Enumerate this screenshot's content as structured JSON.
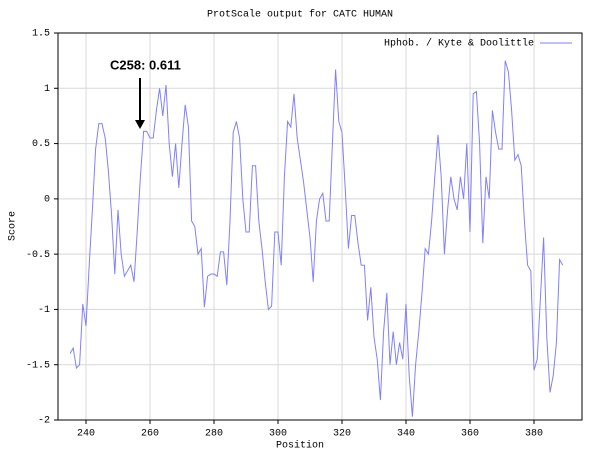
{
  "chart_data": {
    "type": "line",
    "title": "ProtScale output for CATC HUMAN",
    "x_label": "Position",
    "y_label": "Score",
    "annotation": "C258: 0.611",
    "x": [
      235,
      236,
      237,
      238,
      239,
      240,
      241,
      242,
      243,
      244,
      245,
      246,
      247,
      248,
      249,
      250,
      251,
      252,
      253,
      254,
      255,
      256,
      257,
      258,
      259,
      260,
      261,
      262,
      263,
      264,
      265,
      266,
      267,
      268,
      269,
      270,
      271,
      272,
      273,
      274,
      275,
      276,
      277,
      278,
      279,
      280,
      281,
      282,
      283,
      284,
      285,
      286,
      287,
      288,
      289,
      290,
      291,
      292,
      293,
      294,
      295,
      296,
      297,
      298,
      299,
      300,
      301,
      302,
      303,
      304,
      305,
      306,
      307,
      308,
      309,
      310,
      311,
      312,
      313,
      314,
      315,
      316,
      317,
      318,
      319,
      320,
      321,
      322,
      323,
      324,
      325,
      326,
      327,
      328,
      329,
      330,
      331,
      332,
      333,
      334,
      335,
      336,
      337,
      338,
      339,
      340,
      341,
      342,
      343,
      344,
      345,
      346,
      347,
      348,
      349,
      350,
      351,
      352,
      353,
      354,
      355,
      356,
      357,
      358,
      359,
      360,
      361,
      362,
      363,
      364,
      365,
      366,
      367,
      368,
      369,
      370,
      371,
      372,
      373,
      374,
      375,
      376,
      377,
      378,
      379,
      380,
      381,
      382,
      383,
      384,
      385,
      386,
      387,
      388,
      389
    ],
    "series": [
      {
        "name": "Hphob. / Kyte & Doolittle",
        "color": "#8080ff",
        "values": [
          -1.4,
          -1.35,
          -1.53,
          -1.5,
          -0.95,
          -1.15,
          -0.6,
          -0.1,
          0.45,
          0.68,
          0.68,
          0.55,
          0.25,
          -0.15,
          -0.68,
          -0.1,
          -0.5,
          -0.7,
          -0.65,
          -0.6,
          -0.75,
          -0.3,
          0.2,
          0.611,
          0.61,
          0.55,
          0.55,
          0.8,
          1.0,
          0.75,
          1.03,
          0.5,
          0.2,
          0.5,
          0.1,
          0.5,
          0.85,
          0.65,
          -0.2,
          -0.25,
          -0.5,
          -0.45,
          -0.98,
          -0.7,
          -0.68,
          -0.68,
          -0.7,
          -0.48,
          -0.48,
          -0.78,
          -0.2,
          0.6,
          0.7,
          0.55,
          0.0,
          -0.3,
          -0.3,
          0.3,
          0.3,
          -0.2,
          -0.45,
          -0.75,
          -1.0,
          -0.97,
          -0.3,
          -0.3,
          -0.6,
          0.2,
          0.7,
          0.65,
          0.95,
          0.55,
          0.35,
          0.15,
          -0.1,
          -0.35,
          -0.75,
          -0.2,
          0.0,
          0.05,
          -0.2,
          -0.2,
          0.5,
          1.17,
          0.7,
          0.6,
          0.1,
          -0.45,
          -0.15,
          -0.15,
          -0.4,
          -0.6,
          -0.6,
          -1.1,
          -0.8,
          -1.25,
          -1.45,
          -1.82,
          -1.2,
          -0.85,
          -1.5,
          -1.2,
          -1.5,
          -1.3,
          -1.45,
          -0.95,
          -1.6,
          -1.97,
          -1.5,
          -1.2,
          -0.85,
          -0.45,
          -0.5,
          -0.2,
          0.2,
          0.58,
          0.2,
          -0.5,
          -0.1,
          0.2,
          0.0,
          -0.1,
          0.2,
          0.0,
          0.5,
          -0.3,
          0.95,
          0.97,
          0.5,
          -0.4,
          0.2,
          0.0,
          0.8,
          0.6,
          0.45,
          0.45,
          1.25,
          1.15,
          0.8,
          0.35,
          0.4,
          0.3,
          -0.2,
          -0.6,
          -0.65,
          -1.55,
          -1.45,
          -0.9,
          -0.35,
          -1.25,
          -1.75,
          -1.6,
          -1.3,
          -0.55,
          -0.6
        ]
      }
    ],
    "xlim": [
      231.25,
      395
    ],
    "xticks": [
      240,
      260,
      280,
      300,
      320,
      340,
      360,
      380
    ],
    "ylim": [
      -2,
      1.5
    ],
    "yticks": [
      -2,
      -1.5,
      -1,
      -0.5,
      0,
      0.5,
      1,
      1.5
    ],
    "grid": true,
    "legend": "top-right"
  }
}
